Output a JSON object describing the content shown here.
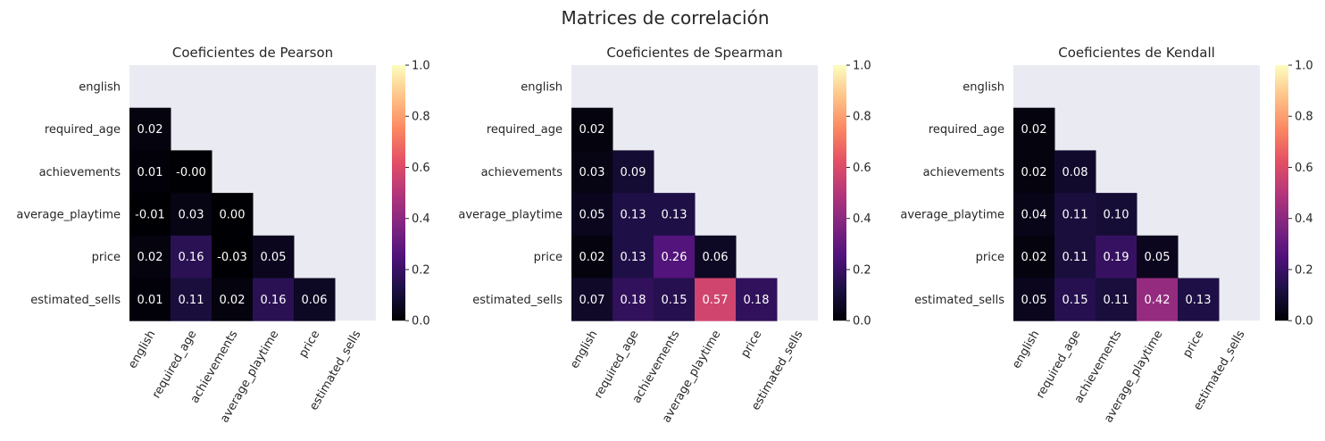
{
  "figure": {
    "suptitle": "Matrices de correlación"
  },
  "chart_data": [
    {
      "type": "heatmap",
      "title": "Coeficientes de Pearson",
      "colormap": "magma",
      "mask": "upper-triangle-including-diagonal",
      "vmin": 0.0,
      "vmax": 1.0,
      "colorbar_ticks": [
        "0.0",
        "0.2",
        "0.4",
        "0.6",
        "0.8",
        "1.0"
      ],
      "labels": [
        "english",
        "required_age",
        "achievements",
        "average_playtime",
        "price",
        "estimated_sells"
      ],
      "values": [
        [
          null,
          null,
          null,
          null,
          null,
          null
        ],
        [
          0.02,
          null,
          null,
          null,
          null,
          null
        ],
        [
          0.01,
          -0.0,
          null,
          null,
          null,
          null
        ],
        [
          -0.01,
          0.03,
          0.0,
          null,
          null,
          null
        ],
        [
          0.02,
          0.16,
          -0.03,
          0.05,
          null,
          null
        ],
        [
          0.01,
          0.11,
          0.02,
          0.16,
          0.06,
          null
        ]
      ],
      "annotations": [
        [
          null,
          null,
          null,
          null,
          null,
          null
        ],
        [
          "0.02",
          null,
          null,
          null,
          null,
          null
        ],
        [
          "0.01",
          "-0.00",
          null,
          null,
          null,
          null
        ],
        [
          "-0.01",
          "0.03",
          "0.00",
          null,
          null,
          null
        ],
        [
          "0.02",
          "0.16",
          "-0.03",
          "0.05",
          null,
          null
        ],
        [
          "0.01",
          "0.11",
          "0.02",
          "0.16",
          "0.06",
          null
        ]
      ]
    },
    {
      "type": "heatmap",
      "title": "Coeficientes de Spearman",
      "colormap": "magma",
      "mask": "upper-triangle-including-diagonal",
      "vmin": 0.0,
      "vmax": 1.0,
      "colorbar_ticks": [
        "0.0",
        "0.2",
        "0.4",
        "0.6",
        "0.8",
        "1.0"
      ],
      "labels": [
        "english",
        "required_age",
        "achievements",
        "average_playtime",
        "price",
        "estimated_sells"
      ],
      "values": [
        [
          null,
          null,
          null,
          null,
          null,
          null
        ],
        [
          0.02,
          null,
          null,
          null,
          null,
          null
        ],
        [
          0.03,
          0.09,
          null,
          null,
          null,
          null
        ],
        [
          0.05,
          0.13,
          0.13,
          null,
          null,
          null
        ],
        [
          0.02,
          0.13,
          0.26,
          0.06,
          null,
          null
        ],
        [
          0.07,
          0.18,
          0.15,
          0.57,
          0.18,
          null
        ]
      ],
      "annotations": [
        [
          null,
          null,
          null,
          null,
          null,
          null
        ],
        [
          "0.02",
          null,
          null,
          null,
          null,
          null
        ],
        [
          "0.03",
          "0.09",
          null,
          null,
          null,
          null
        ],
        [
          "0.05",
          "0.13",
          "0.13",
          null,
          null,
          null
        ],
        [
          "0.02",
          "0.13",
          "0.26",
          "0.06",
          null,
          null
        ],
        [
          "0.07",
          "0.18",
          "0.15",
          "0.57",
          "0.18",
          null
        ]
      ]
    },
    {
      "type": "heatmap",
      "title": "Coeficientes de Kendall",
      "colormap": "magma",
      "mask": "upper-triangle-including-diagonal",
      "vmin": 0.0,
      "vmax": 1.0,
      "colorbar_ticks": [
        "0.0",
        "0.2",
        "0.4",
        "0.6",
        "0.8",
        "1.0"
      ],
      "labels": [
        "english",
        "required_age",
        "achievements",
        "average_playtime",
        "price",
        "estimated_sells"
      ],
      "values": [
        [
          null,
          null,
          null,
          null,
          null,
          null
        ],
        [
          0.02,
          null,
          null,
          null,
          null,
          null
        ],
        [
          0.02,
          0.08,
          null,
          null,
          null,
          null
        ],
        [
          0.04,
          0.11,
          0.1,
          null,
          null,
          null
        ],
        [
          0.02,
          0.11,
          0.19,
          0.05,
          null,
          null
        ],
        [
          0.05,
          0.15,
          0.11,
          0.42,
          0.13,
          null
        ]
      ],
      "annotations": [
        [
          null,
          null,
          null,
          null,
          null,
          null
        ],
        [
          "0.02",
          null,
          null,
          null,
          null,
          null
        ],
        [
          "0.02",
          "0.08",
          null,
          null,
          null,
          null
        ],
        [
          "0.04",
          "0.11",
          "0.10",
          null,
          null,
          null
        ],
        [
          "0.02",
          "0.11",
          "0.19",
          "0.05",
          null,
          null
        ],
        [
          "0.05",
          "0.15",
          "0.11",
          "0.42",
          "0.13",
          null
        ]
      ]
    }
  ],
  "colors": {
    "axes_background": "#eaeaf2",
    "text": "#262626"
  }
}
